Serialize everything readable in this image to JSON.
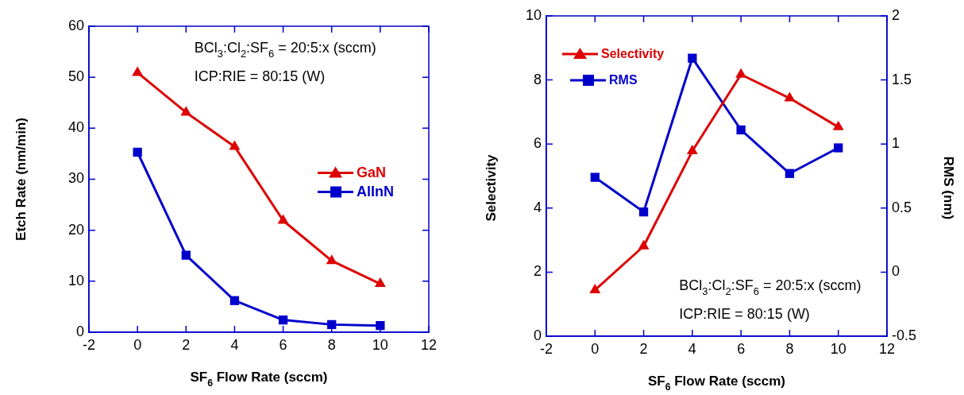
{
  "chart_data": [
    {
      "type": "line",
      "xlabel": "SF$_{6}$ Flow Rate (sccm)",
      "ylabel": "Etch Rate (nm/min)",
      "x": [
        0,
        2,
        4,
        6,
        8,
        10
      ],
      "series": [
        {
          "name": "GaN",
          "color": "#dd0000",
          "marker": "triangle",
          "values": [
            50.9,
            43.1,
            36.4,
            21.9,
            14.0,
            9.5
          ]
        },
        {
          "name": "AlInN",
          "color": "#0000cc",
          "marker": "square",
          "values": [
            35.3,
            15.1,
            6.2,
            2.4,
            1.5,
            1.3
          ]
        }
      ],
      "xlim": [
        -2,
        12
      ],
      "xticks": [
        -2,
        0,
        2,
        4,
        6,
        8,
        10,
        12
      ],
      "ylim": [
        0,
        60
      ],
      "yticks": [
        0,
        10,
        20,
        30,
        40,
        50,
        60
      ],
      "legend": "right",
      "grid": false,
      "line_style": "solid",
      "annotations": [
        "BCl$_{3}$:Cl$_{2}$:SF$_{6}$ = 20:5:x (sccm)",
        "ICP:RIE = 80:15 (W)"
      ]
    },
    {
      "type": "line",
      "xlabel": "SF$_{6}$ Flow Rate (sccm)",
      "ylabel": "Selectivity",
      "y2label": "RMS (nm)",
      "x": [
        0,
        2,
        4,
        6,
        8,
        10
      ],
      "series": [
        {
          "name": "Selectivity",
          "color": "#dd0000",
          "marker": "triangle",
          "values": [
            1.44,
            2.81,
            5.78,
            8.17,
            7.43,
            6.53
          ]
        },
        {
          "name": "RMS",
          "color": "#0000cc",
          "marker": "square",
          "axis": "y2",
          "values": [
            0.74,
            0.47,
            1.67,
            1.11,
            0.77,
            0.97
          ]
        }
      ],
      "xlim": [
        -2,
        12
      ],
      "xticks": [
        -2,
        0,
        2,
        4,
        6,
        8,
        10,
        12
      ],
      "ylim": [
        0,
        10
      ],
      "yticks": [
        0,
        2,
        4,
        6,
        8,
        10
      ],
      "y2lim": [
        -0.5,
        2
      ],
      "y2ticks": [
        -0.5,
        0,
        0.5,
        1,
        1.5,
        2
      ],
      "legend": "top left",
      "grid": false,
      "line_style": "solid",
      "annotations": [
        "BCl$_{3}$:Cl$_{2}$:SF$_{6}$ = 20:5:x (sccm)",
        "ICP:RIE = 80:15 (W)"
      ]
    }
  ]
}
